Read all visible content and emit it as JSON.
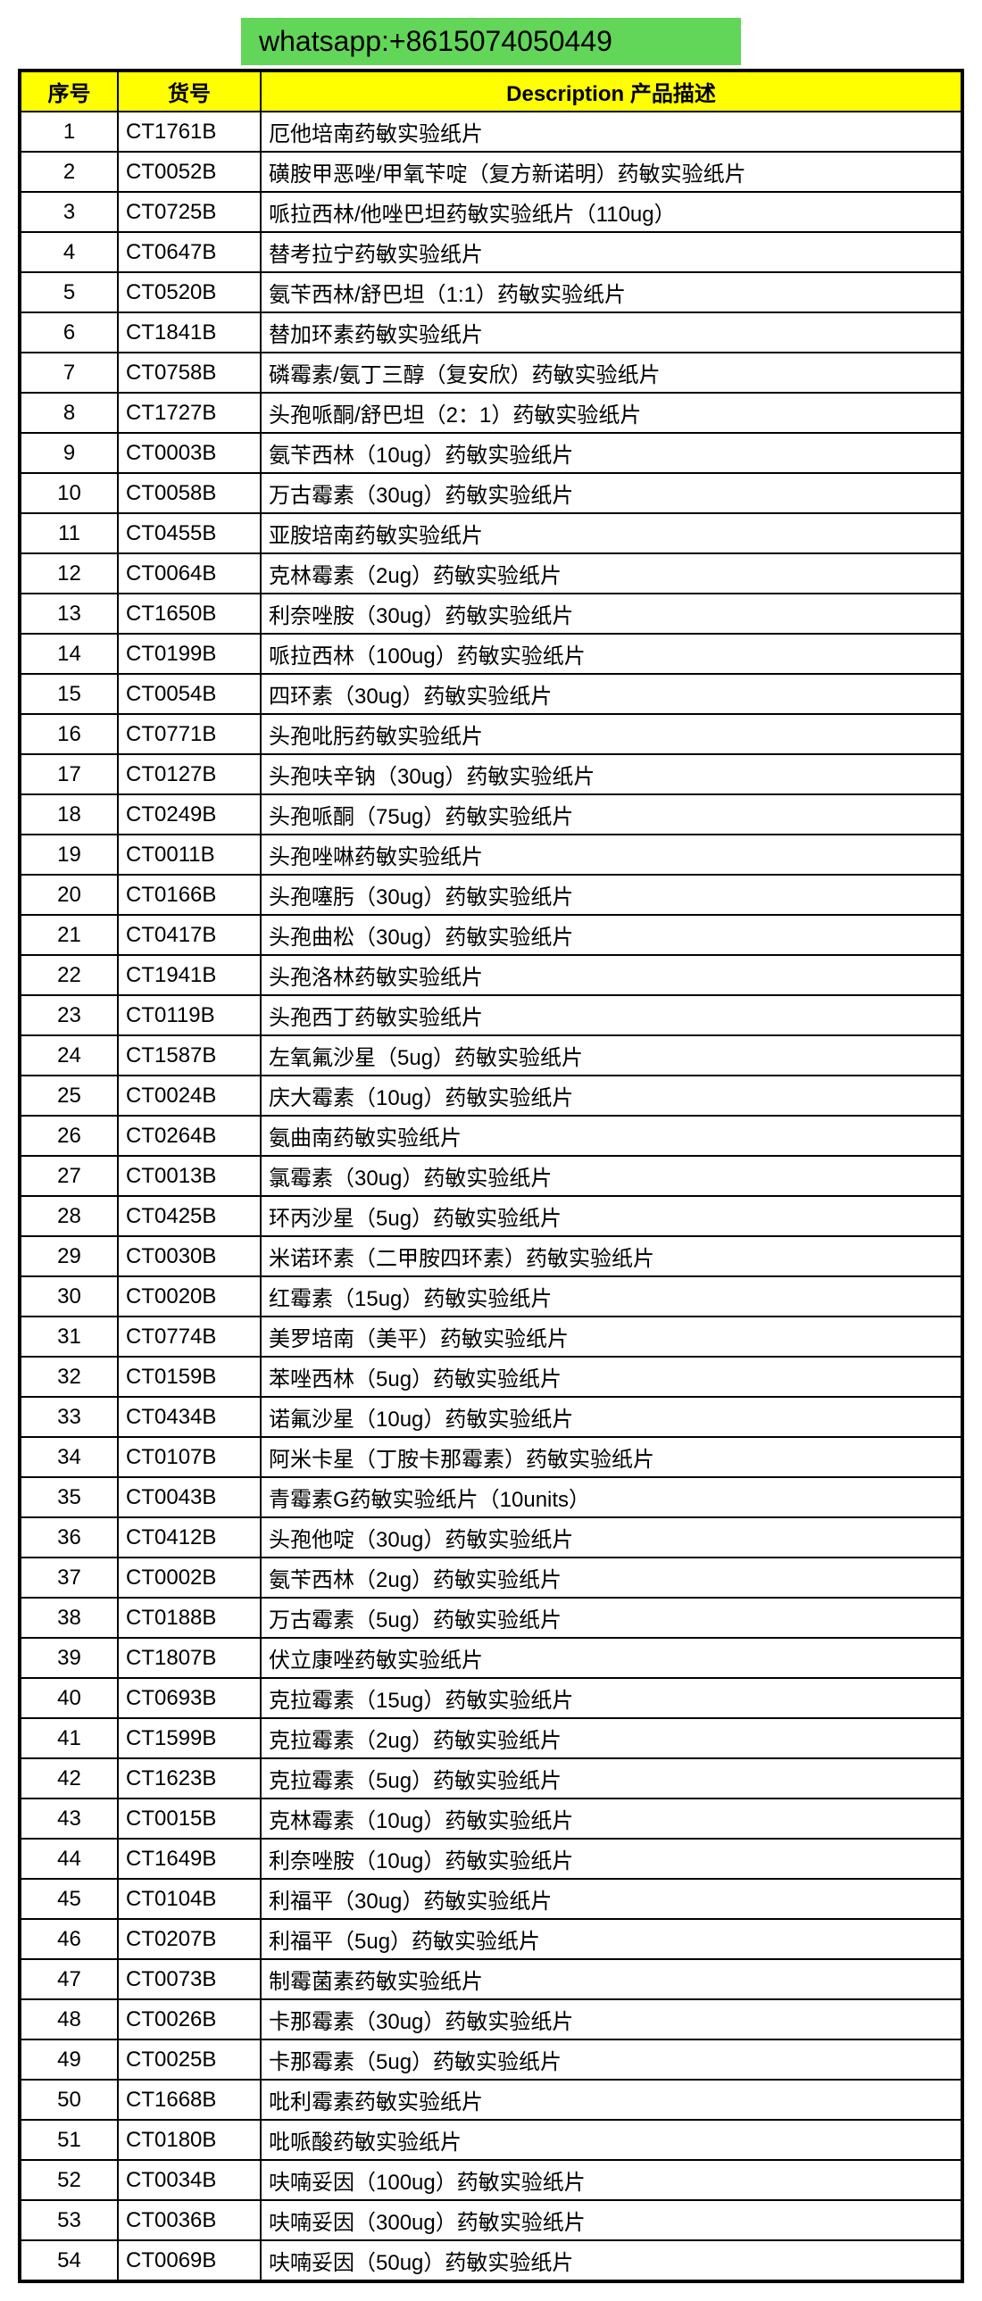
{
  "banner": "whatsapp:+8615074050449",
  "columns": [
    "序号",
    "货号",
    "Description 产品描述"
  ],
  "header_bg": "#ffff00",
  "banner_bg": "#62d658",
  "rows": [
    {
      "seq": "1",
      "code": "CT1761B",
      "desc": "厄他培南药敏实验纸片"
    },
    {
      "seq": "2",
      "code": "CT0052B",
      "desc": "磺胺甲恶唑/甲氧苄啶（复方新诺明）药敏实验纸片"
    },
    {
      "seq": "3",
      "code": "CT0725B",
      "desc": "哌拉西林/他唑巴坦药敏实验纸片（110ug）"
    },
    {
      "seq": "4",
      "code": "CT0647B",
      "desc": "替考拉宁药敏实验纸片"
    },
    {
      "seq": "5",
      "code": "CT0520B",
      "desc": "氨苄西林/舒巴坦（1:1）药敏实验纸片"
    },
    {
      "seq": "6",
      "code": "CT1841B",
      "desc": "替加环素药敏实验纸片"
    },
    {
      "seq": "7",
      "code": "CT0758B",
      "desc": "磷霉素/氨丁三醇（复安欣）药敏实验纸片"
    },
    {
      "seq": "8",
      "code": "CT1727B",
      "desc": "头孢哌酮/舒巴坦（2：1）药敏实验纸片"
    },
    {
      "seq": "9",
      "code": "CT0003B",
      "desc": "氨苄西林（10ug）药敏实验纸片"
    },
    {
      "seq": "10",
      "code": "CT0058B",
      "desc": "万古霉素（30ug）药敏实验纸片"
    },
    {
      "seq": "11",
      "code": "CT0455B",
      "desc": "亚胺培南药敏实验纸片"
    },
    {
      "seq": "12",
      "code": "CT0064B",
      "desc": "克林霉素（2ug）药敏实验纸片"
    },
    {
      "seq": "13",
      "code": "CT1650B",
      "desc": "利奈唑胺（30ug）药敏实验纸片"
    },
    {
      "seq": "14",
      "code": "CT0199B",
      "desc": "哌拉西林（100ug）药敏实验纸片"
    },
    {
      "seq": "15",
      "code": "CT0054B",
      "desc": "四环素（30ug）药敏实验纸片"
    },
    {
      "seq": "16",
      "code": "CT0771B",
      "desc": "头孢吡肟药敏实验纸片"
    },
    {
      "seq": "17",
      "code": "CT0127B",
      "desc": "头孢呋辛钠（30ug）药敏实验纸片"
    },
    {
      "seq": "18",
      "code": "CT0249B",
      "desc": "头孢哌酮（75ug）药敏实验纸片"
    },
    {
      "seq": "19",
      "code": "CT0011B",
      "desc": "头孢唑啉药敏实验纸片"
    },
    {
      "seq": "20",
      "code": "CT0166B",
      "desc": "头孢噻肟（30ug）药敏实验纸片"
    },
    {
      "seq": "21",
      "code": "CT0417B",
      "desc": "头孢曲松（30ug）药敏实验纸片"
    },
    {
      "seq": "22",
      "code": "CT1941B",
      "desc": "头孢洛林药敏实验纸片"
    },
    {
      "seq": "23",
      "code": "CT0119B",
      "desc": "头孢西丁药敏实验纸片"
    },
    {
      "seq": "24",
      "code": "CT1587B",
      "desc": "左氧氟沙星（5ug）药敏实验纸片"
    },
    {
      "seq": "25",
      "code": "CT0024B",
      "desc": "庆大霉素（10ug）药敏实验纸片"
    },
    {
      "seq": "26",
      "code": "CT0264B",
      "desc": "氨曲南药敏实验纸片"
    },
    {
      "seq": "27",
      "code": "CT0013B",
      "desc": "氯霉素（30ug）药敏实验纸片"
    },
    {
      "seq": "28",
      "code": "CT0425B",
      "desc": "环丙沙星（5ug）药敏实验纸片"
    },
    {
      "seq": "29",
      "code": "CT0030B",
      "desc": "米诺环素（二甲胺四环素）药敏实验纸片"
    },
    {
      "seq": "30",
      "code": "CT0020B",
      "desc": "红霉素（15ug）药敏实验纸片"
    },
    {
      "seq": "31",
      "code": "CT0774B",
      "desc": "美罗培南（美平）药敏实验纸片"
    },
    {
      "seq": "32",
      "code": "CT0159B",
      "desc": "苯唑西林（5ug）药敏实验纸片"
    },
    {
      "seq": "33",
      "code": "CT0434B",
      "desc": "诺氟沙星（10ug）药敏实验纸片"
    },
    {
      "seq": "34",
      "code": "CT0107B",
      "desc": "阿米卡星（丁胺卡那霉素）药敏实验纸片"
    },
    {
      "seq": "35",
      "code": "CT0043B",
      "desc": "青霉素G药敏实验纸片（10units）"
    },
    {
      "seq": "36",
      "code": "CT0412B",
      "desc": "头孢他啶（30ug）药敏实验纸片"
    },
    {
      "seq": "37",
      "code": "CT0002B",
      "desc": "氨苄西林（2ug）药敏实验纸片"
    },
    {
      "seq": "38",
      "code": "CT0188B",
      "desc": "万古霉素（5ug）药敏实验纸片"
    },
    {
      "seq": "39",
      "code": "CT1807B",
      "desc": "伏立康唑药敏实验纸片"
    },
    {
      "seq": "40",
      "code": "CT0693B",
      "desc": "克拉霉素（15ug）药敏实验纸片"
    },
    {
      "seq": "41",
      "code": "CT1599B",
      "desc": "克拉霉素（2ug）药敏实验纸片"
    },
    {
      "seq": "42",
      "code": "CT1623B",
      "desc": "克拉霉素（5ug）药敏实验纸片"
    },
    {
      "seq": "43",
      "code": "CT0015B",
      "desc": "克林霉素（10ug）药敏实验纸片"
    },
    {
      "seq": "44",
      "code": "CT1649B",
      "desc": "利奈唑胺（10ug）药敏实验纸片"
    },
    {
      "seq": "45",
      "code": "CT0104B",
      "desc": "利福平（30ug）药敏实验纸片"
    },
    {
      "seq": "46",
      "code": "CT0207B",
      "desc": "利福平（5ug）药敏实验纸片"
    },
    {
      "seq": "47",
      "code": "CT0073B",
      "desc": "制霉菌素药敏实验纸片"
    },
    {
      "seq": "48",
      "code": "CT0026B",
      "desc": "卡那霉素（30ug）药敏实验纸片"
    },
    {
      "seq": "49",
      "code": "CT0025B",
      "desc": "卡那霉素（5ug）药敏实验纸片"
    },
    {
      "seq": "50",
      "code": "CT1668B",
      "desc": "吡利霉素药敏实验纸片"
    },
    {
      "seq": "51",
      "code": "CT0180B",
      "desc": "吡哌酸药敏实验纸片"
    },
    {
      "seq": "52",
      "code": "CT0034B",
      "desc": "呋喃妥因（100ug）药敏实验纸片"
    },
    {
      "seq": "53",
      "code": "CT0036B",
      "desc": "呋喃妥因（300ug）药敏实验纸片"
    },
    {
      "seq": "54",
      "code": "CT0069B",
      "desc": "呋喃妥因（50ug）药敏实验纸片"
    }
  ]
}
